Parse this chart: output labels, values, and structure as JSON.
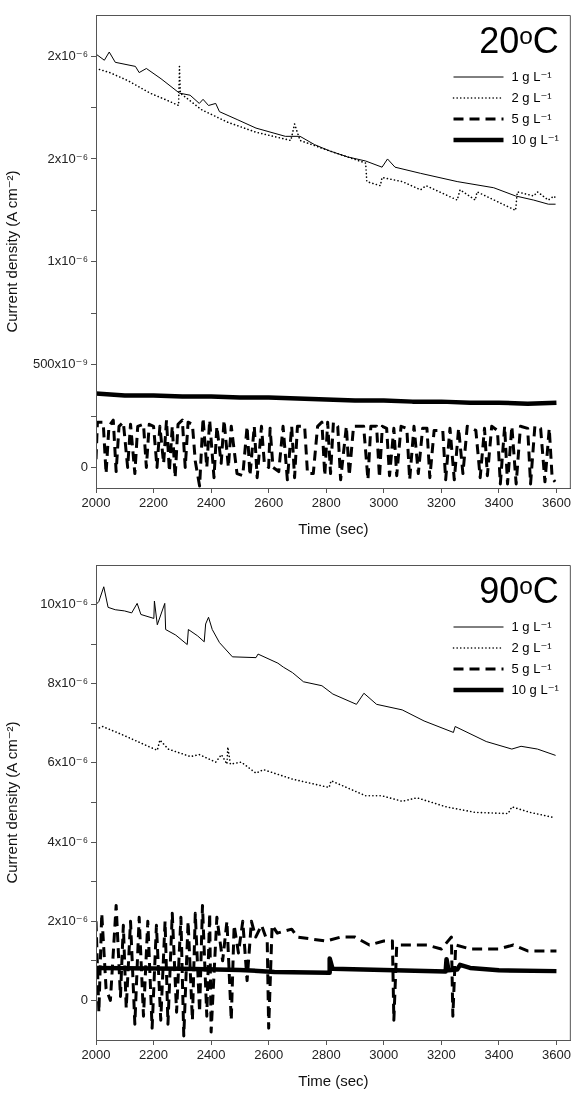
{
  "chart_data": [
    {
      "type": "line",
      "title": "20ᵒC",
      "xlabel": "Time (sec)",
      "ylabel": "Current density (A cm⁻²)",
      "xlim": [
        2000,
        3650
      ],
      "xticks": [
        2000,
        2200,
        2400,
        2600,
        2800,
        3000,
        3200,
        3400,
        3600
      ],
      "ylim": [
        -1e-07,
        2.2e-06
      ],
      "yticks": [
        {
          "value": 0,
          "label": "0"
        },
        {
          "value": 2.5e-07,
          "label": null
        },
        {
          "value": 5e-07,
          "label": "500x10⁻⁹"
        },
        {
          "value": 7.5e-07,
          "label": null
        },
        {
          "value": 1e-06,
          "label": "1x10⁻⁶"
        },
        {
          "value": 1.25e-06,
          "label": null
        },
        {
          "value": 1.5e-06,
          "label": "2x10⁻⁶"
        },
        {
          "value": 1.75e-06,
          "label": null
        },
        {
          "value": 2e-06,
          "label": "2x10⁻⁶"
        }
      ],
      "grid": false,
      "legend": "top right",
      "series": [
        {
          "name": "1 g L⁻¹",
          "color": "#000000",
          "line_style": "solid",
          "x": [
            2000,
            2029,
            2046,
            2067,
            2137,
            2150,
            2175,
            2226,
            2290,
            2327,
            2359,
            2372,
            2391,
            2416,
            2429,
            2493,
            2556,
            2658,
            2709,
            2759,
            2810,
            2874,
            2937,
            2994,
            3013,
            3039,
            3128,
            3255,
            3382,
            3458,
            3521,
            3572,
            3597
          ],
          "values": [
            2.01e-06,
            1.98e-06,
            2.02e-06,
            1.97e-06,
            1.95e-06,
            1.92e-06,
            1.94e-06,
            1.89e-06,
            1.82e-06,
            1.81e-06,
            1.77e-06,
            1.79e-06,
            1.76e-06,
            1.77e-06,
            1.73e-06,
            1.69e-06,
            1.65e-06,
            1.61e-06,
            1.61e-06,
            1.57e-06,
            1.54e-06,
            1.51e-06,
            1.49e-06,
            1.46e-06,
            1.5e-06,
            1.46e-06,
            1.43e-06,
            1.39e-06,
            1.36e-06,
            1.32e-06,
            1.3e-06,
            1.28e-06,
            1.28e-06
          ]
        },
        {
          "name": "2 g L⁻¹",
          "color": "#000000",
          "line_style": "dotted",
          "x": [
            2000,
            2048,
            2112,
            2188,
            2239,
            2287,
            2290,
            2293,
            2366,
            2455,
            2556,
            2677,
            2690,
            2709,
            2810,
            2937,
            2941,
            2988,
            2994,
            3064,
            3128,
            3147,
            3255,
            3265,
            3318,
            3324,
            3458,
            3464,
            3521,
            3534,
            3572,
            3591,
            3597
          ],
          "values": [
            1.94e-06,
            1.92e-06,
            1.88e-06,
            1.82e-06,
            1.79e-06,
            1.76e-06,
            1.95e-06,
            1.82e-06,
            1.74e-06,
            1.68e-06,
            1.63e-06,
            1.59e-06,
            1.67e-06,
            1.59e-06,
            1.54e-06,
            1.48e-06,
            1.39e-06,
            1.37e-06,
            1.41e-06,
            1.39e-06,
            1.35e-06,
            1.37e-06,
            1.3e-06,
            1.35e-06,
            1.3e-06,
            1.34e-06,
            1.25e-06,
            1.34e-06,
            1.32e-06,
            1.34e-06,
            1.3e-06,
            1.32e-06,
            1.31e-06
          ]
        },
        {
          "name": "5 g L⁻¹",
          "color": "#000000",
          "line_style": "dashed",
          "x": [
            2000,
            2005,
            2025,
            2035,
            2045,
            2060,
            2070,
            2080,
            2095,
            2110,
            2120,
            2135,
            2145,
            2165,
            2175,
            2185,
            2200,
            2212,
            2222,
            2235,
            2245,
            2255,
            2265,
            2275,
            2285,
            2300,
            2310,
            2320,
            2335,
            2345,
            2360,
            2372,
            2385,
            2395,
            2410,
            2420,
            2435,
            2445,
            2460,
            2470,
            2490,
            2510,
            2525,
            2535,
            2550,
            2560,
            2575,
            2585,
            2600,
            2605,
            2615,
            2635,
            2650,
            2665,
            2680,
            2690,
            2700,
            2725,
            2735,
            2755,
            2770,
            2785,
            2795,
            2805,
            2815,
            2825,
            2840,
            2850,
            2870,
            2880,
            2895,
            2930,
            2945,
            2955,
            2975,
            2985,
            2995,
            3010,
            3020,
            3035,
            3045,
            3060,
            3080,
            3090,
            3105,
            3120,
            3135,
            3150,
            3160,
            3175,
            3205,
            3215,
            3230,
            3245,
            3260,
            3275,
            3290,
            3320,
            3335,
            3350,
            3360,
            3375,
            3395,
            3405,
            3420,
            3430,
            3445,
            3460,
            3475,
            3500,
            3510,
            3525,
            3545,
            3560,
            3575,
            3585,
            3595
          ],
          "values": [
            4e-08,
            2.2e-07,
            2.2e-07,
            -3e-08,
            2e-07,
            2.3e-07,
            -2e-08,
            2e-07,
            2.2e-07,
            0,
            2.1e-07,
            -3e-08,
            2e-07,
            2.1e-07,
            0,
            2.1e-07,
            2e-07,
            0,
            2e-07,
            2e-08,
            2.3e-07,
            -2e-08,
            2e-07,
            -5e-08,
            2.1e-07,
            2.3e-07,
            0,
            2.2e-07,
            2.1e-07,
            3e-08,
            -9e-08,
            2.4e-07,
            0,
            2.3e-07,
            -5e-08,
            2e-07,
            2e-08,
            2.3e-07,
            0,
            2e-07,
            -3e-08,
            -4e-08,
            2e-07,
            -4e-08,
            2e-07,
            -5e-08,
            2e-07,
            2e-08,
            0,
            1.9e-07,
            0,
            -2e-08,
            2e-07,
            -6e-08,
            2e-07,
            -5e-08,
            2e-07,
            2e-07,
            -3e-08,
            -3e-08,
            2e-07,
            2.2e-07,
            -4e-08,
            2.2e-07,
            -3e-08,
            2.2e-07,
            2e-07,
            -6e-08,
            2e-07,
            -4e-08,
            2e-07,
            2e-07,
            -6e-08,
            2e-07,
            2e-07,
            -5e-08,
            2e-07,
            1.9e-07,
            -4e-08,
            1.9e-07,
            -4e-08,
            2e-07,
            1.9e-07,
            -6e-08,
            2e-07,
            -3e-08,
            1.9e-07,
            1.9e-07,
            -5e-08,
            1.8e-07,
            1.8e-07,
            -6e-08,
            1.9e-07,
            -6e-08,
            1.9e-07,
            -3e-08,
            2e-07,
            1.8e-07,
            -5e-08,
            1.9e-07,
            -4e-08,
            2e-07,
            1.8e-07,
            -8e-08,
            2e-07,
            -8e-08,
            2e-07,
            -8e-08,
            2e-07,
            1.9e-07,
            -8e-08,
            2e-07,
            1.9e-07,
            -7e-08,
            1.9e-07,
            -5e-08,
            -7e-08
          ]
        },
        {
          "name": "10 g L⁻¹",
          "color": "#000000",
          "line_style": "solid",
          "x": [
            2000,
            2100,
            2200,
            2300,
            2400,
            2500,
            2600,
            2700,
            2800,
            2900,
            3000,
            3100,
            3200,
            3300,
            3400,
            3500,
            3600
          ],
          "values": [
            3.6e-07,
            3.5e-07,
            3.5e-07,
            3.45e-07,
            3.45e-07,
            3.4e-07,
            3.4e-07,
            3.35e-07,
            3.3e-07,
            3.25e-07,
            3.25e-07,
            3.2e-07,
            3.2e-07,
            3.15e-07,
            3.15e-07,
            3.1e-07,
            3.15e-07
          ]
        }
      ]
    },
    {
      "type": "line",
      "title": "90ᵒC",
      "xlabel": "Time (sec)",
      "ylabel": "Current density (A cm⁻²)",
      "xlim": [
        2000,
        3650
      ],
      "xticks": [
        2000,
        2200,
        2400,
        2600,
        2800,
        3000,
        3200,
        3400,
        3600
      ],
      "ylim": [
        -1e-06,
        1.1e-05
      ],
      "yticks": [
        {
          "value": 0,
          "label": "0"
        },
        {
          "value": 1e-06,
          "label": null
        },
        {
          "value": 2e-06,
          "label": "2x10⁻⁶"
        },
        {
          "value": 3e-06,
          "label": null
        },
        {
          "value": 4e-06,
          "label": "4x10⁻⁶"
        },
        {
          "value": 5e-06,
          "label": null
        },
        {
          "value": 6e-06,
          "label": "6x10⁻⁶"
        },
        {
          "value": 7e-06,
          "label": null
        },
        {
          "value": 8e-06,
          "label": "8x10⁻⁶"
        },
        {
          "value": 9e-06,
          "label": null
        },
        {
          "value": 1e-05,
          "label": "10x10⁻⁶"
        }
      ],
      "grid": false,
      "legend": "top right",
      "series": [
        {
          "name": "1 g L⁻¹",
          "color": "#000000",
          "line_style": "solid",
          "x": [
            2000,
            2010,
            2027,
            2042,
            2067,
            2099,
            2124,
            2143,
            2156,
            2201,
            2203,
            2213,
            2239,
            2242,
            2277,
            2317,
            2321,
            2353,
            2376,
            2381,
            2391,
            2404,
            2429,
            2474,
            2556,
            2563,
            2632,
            2651,
            2683,
            2721,
            2785,
            2823,
            2905,
            2931,
            2975,
            3064,
            3140,
            3242,
            3248,
            3356,
            3445,
            3477,
            3534,
            3597
          ],
          "values": [
            1e-05,
            1.008e-05,
            1.045e-05,
            9.93e-06,
            9.87e-06,
            9.84e-06,
            9.79e-06,
            1.003e-05,
            9.75e-06,
            9.65e-06,
            1.009e-05,
            9.49e-06,
            1.003e-05,
            9.37e-06,
            9.23e-06,
            8.99e-06,
            9.37e-06,
            9.21e-06,
            9.06e-06,
            9.51e-06,
            9.68e-06,
            9.37e-06,
            9.04e-06,
            8.68e-06,
            8.66e-06,
            8.75e-06,
            8.52e-06,
            8.42e-06,
            8.28e-06,
            8.05e-06,
            7.95e-06,
            7.74e-06,
            7.48e-06,
            7.76e-06,
            7.48e-06,
            7.34e-06,
            7.06e-06,
            6.77e-06,
            6.92e-06,
            6.54e-06,
            6.35e-06,
            6.42e-06,
            6.35e-06,
            6.19e-06
          ]
        },
        {
          "name": "2 g L⁻¹",
          "color": "#000000",
          "line_style": "dotted",
          "x": [
            2000,
            2023,
            2086,
            2175,
            2213,
            2222,
            2251,
            2328,
            2359,
            2416,
            2436,
            2455,
            2458,
            2467,
            2505,
            2556,
            2582,
            2683,
            2810,
            2817,
            2937,
            2994,
            3064,
            3115,
            3217,
            3318,
            3432,
            3445,
            3509,
            3591
          ],
          "values": [
            6.85e-06,
            6.92e-06,
            6.73e-06,
            6.44e-06,
            6.32e-06,
            6.58e-06,
            6.35e-06,
            6.16e-06,
            6.21e-06,
            6.02e-06,
            6.21e-06,
            5.97e-06,
            6.4e-06,
            5.97e-06,
            6.02e-06,
            5.74e-06,
            5.83e-06,
            5.59e-06,
            5.38e-06,
            5.55e-06,
            5.17e-06,
            5.17e-06,
            5.03e-06,
            5.12e-06,
            4.89e-06,
            4.75e-06,
            4.72e-06,
            4.89e-06,
            4.75e-06,
            4.62e-06
          ]
        },
        {
          "name": "5 g L⁻¹",
          "color": "#000000",
          "line_style": "dashed",
          "x": [
            2000,
            2010,
            2020,
            2035,
            2050,
            2070,
            2085,
            2095,
            2105,
            2120,
            2135,
            2150,
            2165,
            2180,
            2195,
            2210,
            2225,
            2240,
            2250,
            2265,
            2280,
            2295,
            2305,
            2320,
            2335,
            2345,
            2360,
            2370,
            2385,
            2395,
            2400,
            2420,
            2440,
            2455,
            2470,
            2480,
            2495,
            2510,
            2525,
            2540,
            2555,
            2575,
            2595,
            2600,
            2612,
            2630,
            2680,
            2700,
            2800,
            2850,
            2900,
            2950,
            3000,
            3030,
            3035,
            3045,
            3100,
            3150,
            3200,
            3235,
            3240,
            3250,
            3300,
            3400,
            3450,
            3500,
            3600
          ],
          "values": [
            2e-06,
            -3e-07,
            2.2e-06,
            3e-07,
            0,
            2.4e-06,
            1e-07,
            1.9e-06,
            -2e-07,
            2e-06,
            -6e-07,
            2.1e-06,
            -4e-07,
            2e-06,
            -7e-07,
            1.9e-06,
            -5e-07,
            2e-06,
            -6e-07,
            2.2e-06,
            -3e-07,
            2.1e-06,
            -9e-07,
            2e-06,
            -5e-07,
            2.2e-06,
            -3e-07,
            2.4e-06,
            -4e-07,
            2.2e-06,
            -8e-07,
            2.1e-06,
            1e-06,
            2e-06,
            -5e-07,
            1.9e-06,
            1.2e-06,
            2e-06,
            5e-07,
            2e-06,
            1.6e-06,
            1.9e-06,
            1.5e-06,
            -7e-07,
            1.9e-06,
            1.7e-06,
            1.8e-06,
            1.6e-06,
            1.5e-06,
            1.6e-06,
            1.6e-06,
            1.4e-06,
            1.5e-06,
            1.5e-06,
            -5e-07,
            1.4e-06,
            1.4e-06,
            1.4e-06,
            1.3e-06,
            1.6e-06,
            -4e-07,
            1.4e-06,
            1.3e-06,
            1.3e-06,
            1.4e-06,
            1.25e-06,
            1.25e-06
          ]
        },
        {
          "name": "10 g L⁻¹",
          "color": "#000000",
          "line_style": "solid",
          "x": [
            2000,
            2300,
            2500,
            2620,
            2810,
            2812,
            2822,
            3000,
            3215,
            3218,
            3225,
            3255,
            3265,
            3300,
            3400,
            3600
          ],
          "values": [
            8.2e-07,
            8e-07,
            7.7e-07,
            7.2e-07,
            7e-07,
            1.06e-06,
            8e-07,
            7.7e-07,
            7.3e-07,
            1.04e-06,
            7.6e-07,
            7.8e-07,
            9e-07,
            8.2e-07,
            7.6e-07,
            7.4e-07
          ]
        }
      ]
    }
  ]
}
